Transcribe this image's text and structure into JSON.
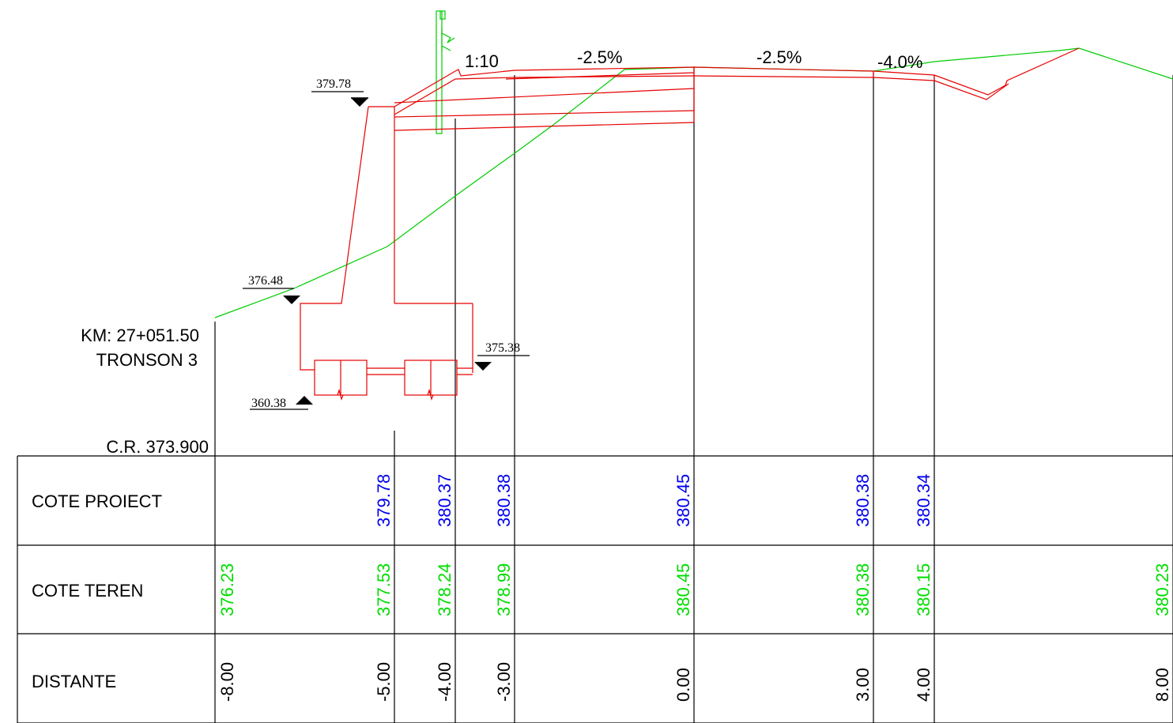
{
  "header": {
    "km": "KM: 27+051.50",
    "tronson": "TRONSON 3",
    "reference": "C.R. 373.900"
  },
  "slopes": {
    "side_ratio": "1:10",
    "left_lane": "-2.5%",
    "right_lane": "-2.5%",
    "shoulder": "-4.0%"
  },
  "elevation_marks": {
    "wall_top": "379.78",
    "ground_left": "376.48",
    "foundation_right": "375.38",
    "foundation_bottom": "360.38"
  },
  "table": {
    "row_labels": {
      "proiect": "COTE PROIECT",
      "teren": "COTE TEREN",
      "distante": "DISTANTE"
    },
    "columns": [
      {
        "distance": "-8.00",
        "teren": "376.23",
        "proiect": ""
      },
      {
        "distance": "-5.00",
        "teren": "377.53",
        "proiect": "379.78"
      },
      {
        "distance": "-4.00",
        "teren": "378.24",
        "proiect": "380.37"
      },
      {
        "distance": "-3.00",
        "teren": "378.99",
        "proiect": "380.38"
      },
      {
        "distance": "0.00",
        "teren": "380.45",
        "proiect": "380.45"
      },
      {
        "distance": "3.00",
        "teren": "380.38",
        "proiect": "380.38"
      },
      {
        "distance": "4.00",
        "teren": "380.15",
        "proiect": "380.34"
      },
      {
        "distance": "8.00",
        "teren": "380.23",
        "proiect": ""
      }
    ]
  },
  "colors": {
    "design": "#e60000",
    "terrain": "#00cc00",
    "project_text": "#0000ee",
    "terrain_text": "#00dd00",
    "lines": "#000000"
  }
}
